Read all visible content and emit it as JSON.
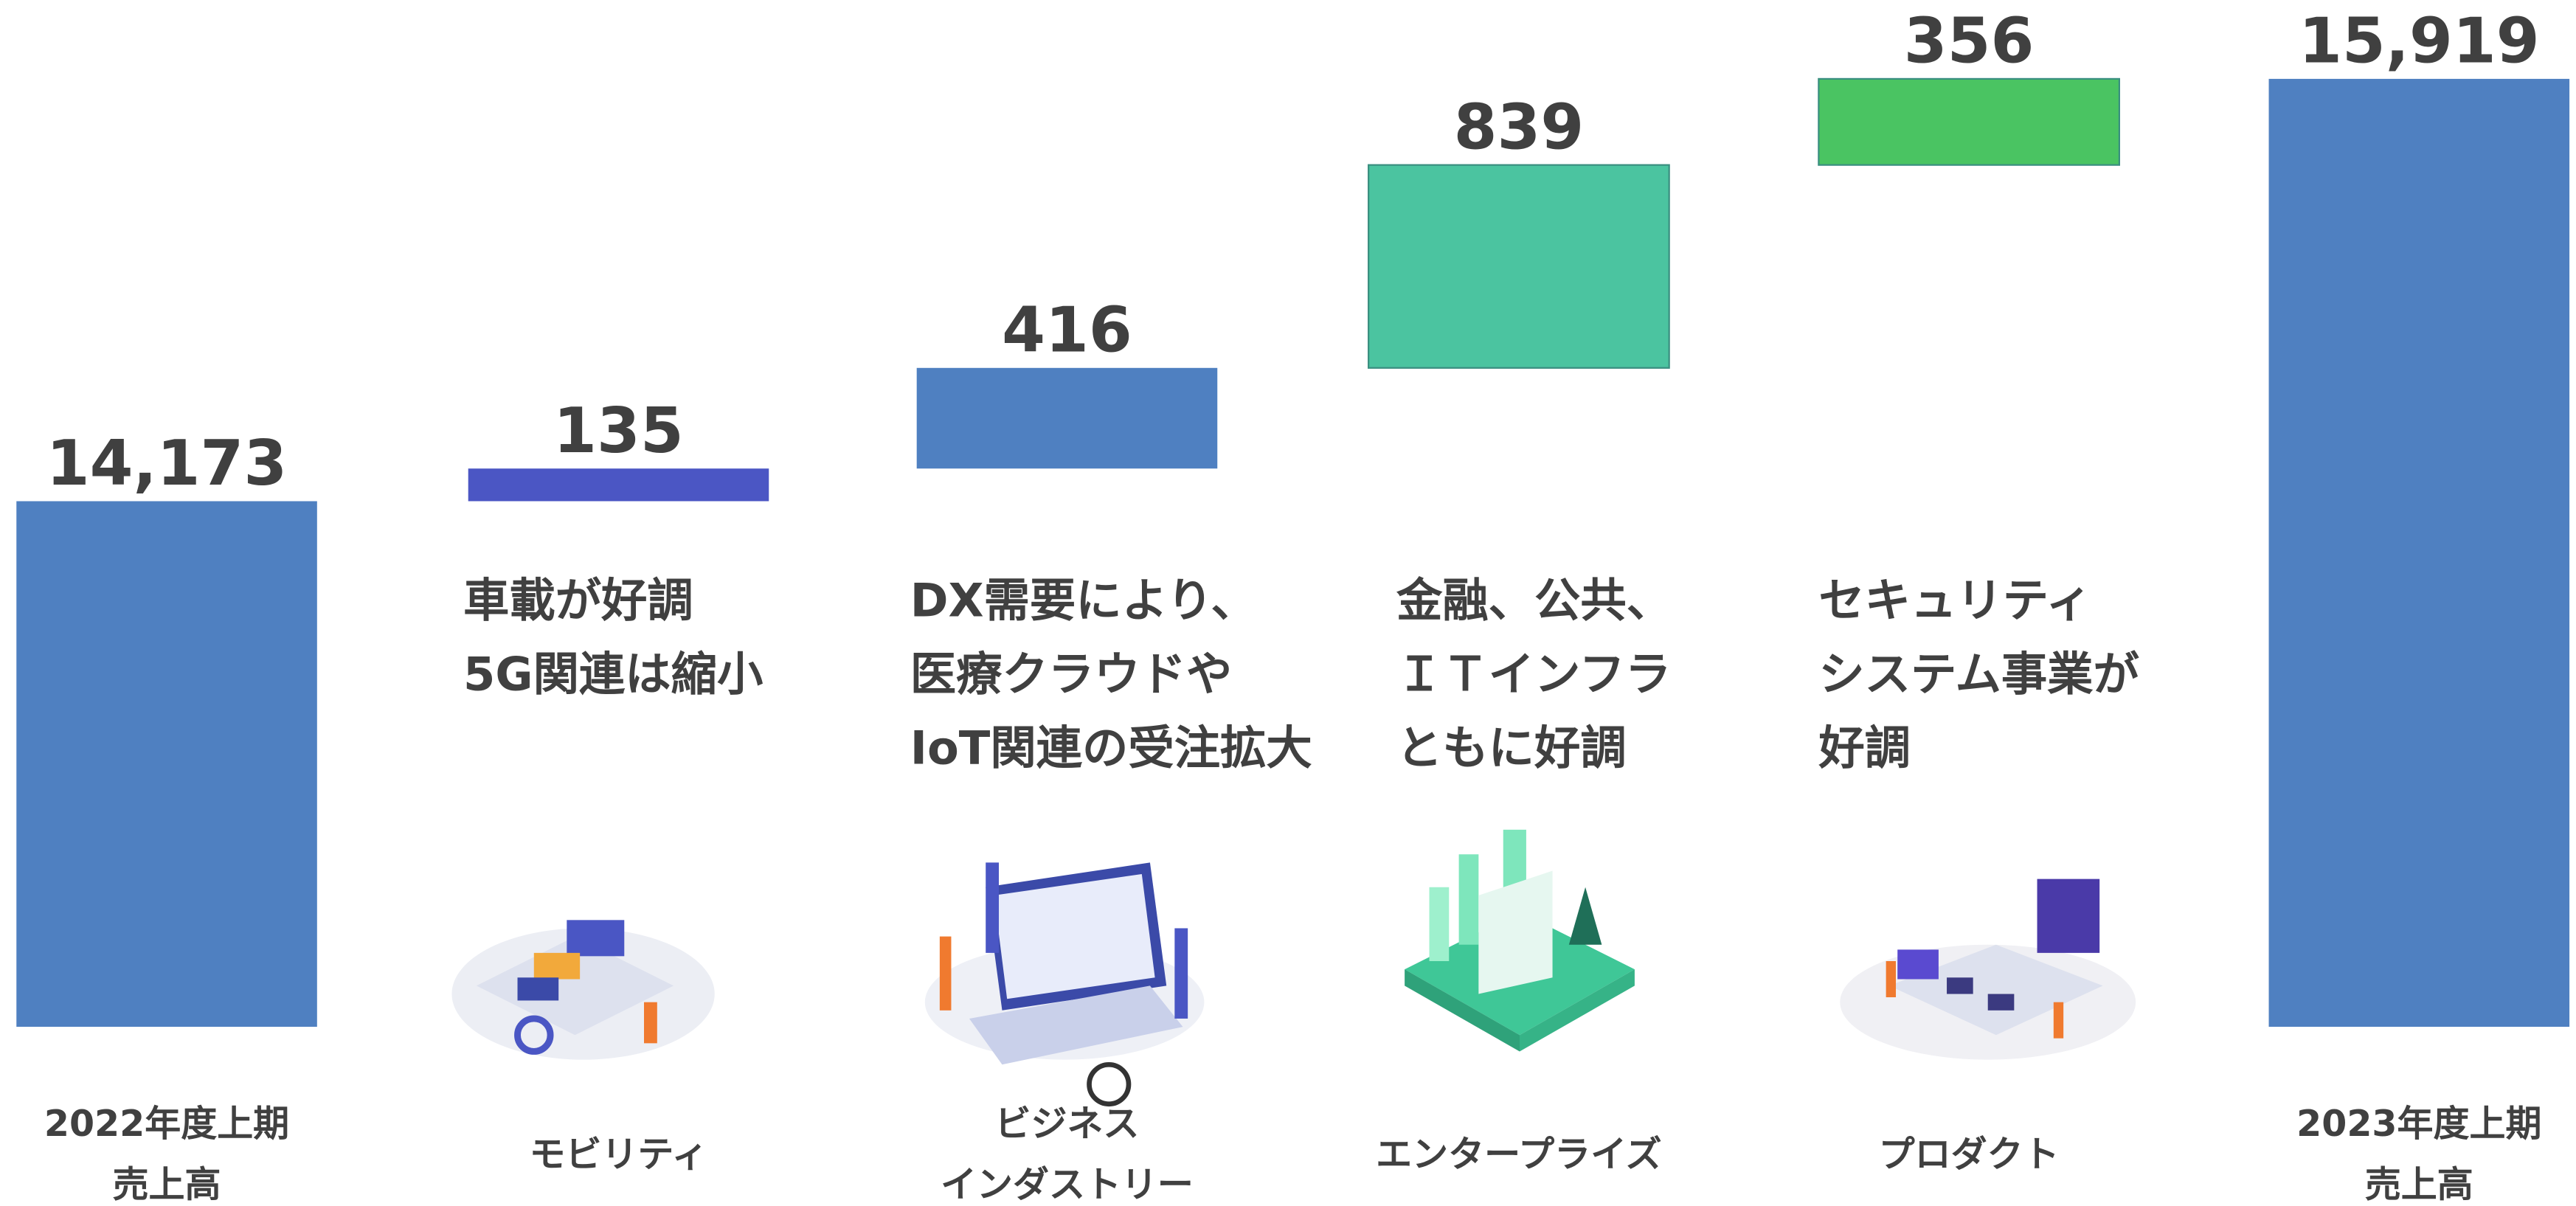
{
  "chart_data": {
    "type": "waterfall",
    "categories": [
      "2022年度上期\n売上高",
      "モビリティ",
      "ビジネス\nインダストリー",
      "エンタープライズ",
      "プロダクト",
      "2023年度上期\n売上高"
    ],
    "measure": [
      "total",
      "relative",
      "relative",
      "relative",
      "relative",
      "total"
    ],
    "values": [
      14173,
      135,
      416,
      839,
      356,
      15919
    ],
    "value_labels": [
      "14,173",
      "135",
      "416",
      "839",
      "356",
      "15,919"
    ],
    "colors": [
      "#4f80c1",
      "#4b56c4",
      "#4f80c1",
      "#4bc4a0",
      "#4ac462",
      "#4f80c1"
    ],
    "annotations": [
      [
        "車載が好調",
        "5G関連は縮小"
      ],
      [
        "DX需要により、",
        "医療クラウドや",
        "IoT関連の受注拡大"
      ],
      [
        "金融、公共、",
        "ＩＴインフラ",
        "ともに好調"
      ],
      [
        "セキュリティ",
        "システム事業が",
        "好調"
      ]
    ],
    "ylim": [
      12000,
      16000
    ]
  }
}
